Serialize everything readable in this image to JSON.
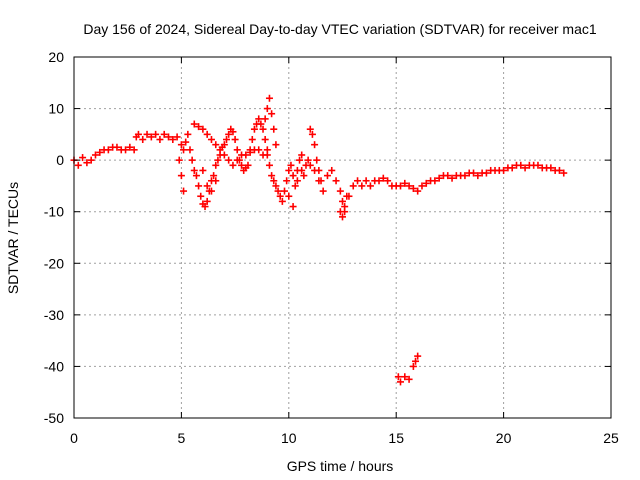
{
  "chart_data": {
    "type": "scatter",
    "title": "Day 156 of 2024, Sidereal Day-to-day VTEC variation (SDTVAR) for receiver mac1",
    "xlabel": "GPS time / hours",
    "ylabel": "SDTVAR / TECUs",
    "xlim": [
      0,
      25
    ],
    "ylim": [
      -50,
      20
    ],
    "xticks": [
      0,
      5,
      10,
      15,
      20,
      25
    ],
    "yticks": [
      -50,
      -40,
      -30,
      -20,
      -10,
      0,
      10,
      20
    ],
    "grid": true,
    "marker": "+",
    "color": "#ff0000",
    "series": [
      {
        "name": "SDTVAR",
        "x": [
          0.0,
          0.2,
          0.4,
          0.6,
          0.8,
          1.0,
          1.2,
          1.4,
          1.6,
          1.8,
          2.0,
          2.2,
          2.4,
          2.6,
          2.8,
          2.9,
          3.0,
          3.2,
          3.4,
          3.6,
          3.8,
          4.0,
          4.2,
          4.4,
          4.6,
          4.8,
          5.0,
          5.1,
          5.2,
          5.3,
          5.4,
          5.5,
          5.6,
          5.7,
          5.8,
          5.9,
          6.0,
          6.1,
          6.2,
          6.3,
          6.4,
          6.5,
          6.6,
          6.7,
          6.8,
          6.9,
          7.0,
          7.1,
          7.2,
          7.3,
          7.4,
          7.5,
          7.6,
          7.7,
          7.8,
          7.9,
          8.0,
          8.1,
          8.2,
          8.3,
          8.4,
          8.5,
          8.6,
          8.7,
          8.8,
          8.9,
          9.0,
          9.1,
          9.2,
          9.3,
          9.4,
          9.5,
          9.6,
          9.7,
          9.8,
          9.9,
          10.0,
          10.1,
          10.2,
          10.3,
          10.4,
          10.5,
          10.6,
          10.7,
          10.8,
          10.9,
          11.0,
          11.2,
          11.4,
          11.6,
          11.8,
          12.0,
          12.2,
          12.4,
          12.5,
          12.6,
          12.8,
          13.0,
          13.2,
          13.4,
          13.6,
          13.8,
          14.0,
          14.2,
          14.4,
          14.6,
          14.8,
          15.0,
          15.2,
          15.4,
          15.6,
          15.8,
          16.0,
          16.2,
          16.4,
          16.6,
          16.8,
          17.0,
          17.2,
          17.4,
          17.6,
          17.8,
          18.0,
          18.2,
          18.4,
          18.6,
          18.8,
          19.0,
          19.2,
          19.4,
          19.6,
          19.8,
          20.0,
          20.2,
          20.4,
          20.6,
          20.8,
          21.0,
          21.2,
          21.4,
          21.6,
          21.8,
          22.0,
          22.2,
          22.4,
          22.6,
          22.8,
          5.6,
          5.8,
          6.0,
          6.2,
          6.4,
          6.6,
          6.8,
          7.0,
          7.2,
          7.4,
          7.6,
          7.8,
          8.0,
          8.2,
          8.4,
          8.6,
          8.8,
          9.0,
          4.9,
          5.0,
          5.1,
          6.0,
          6.2,
          6.4,
          6.6,
          8.9,
          9.0,
          9.1,
          9.2,
          9.3,
          9.4,
          10.0,
          10.2,
          10.4,
          10.6,
          11.0,
          11.1,
          11.2,
          11.3,
          11.4,
          11.5,
          12.4,
          12.5,
          12.6,
          12.7,
          15.1,
          15.2,
          15.4,
          15.6,
          15.8,
          15.9,
          16.0
        ],
        "y": [
          0.0,
          -1.0,
          0.5,
          -0.5,
          0.0,
          1.0,
          1.5,
          2.0,
          2.0,
          2.5,
          2.5,
          2.0,
          2.0,
          2.5,
          2.0,
          4.5,
          5.0,
          4.0,
          5.0,
          4.5,
          5.0,
          4.0,
          5.0,
          4.5,
          4.0,
          4.5,
          3.0,
          2.0,
          3.5,
          5.0,
          2.0,
          0.0,
          -2.0,
          -3.0,
          -5.0,
          -7.0,
          -8.5,
          -9.0,
          -8.0,
          -6.0,
          -4.0,
          -3.0,
          -1.0,
          0.0,
          1.0,
          2.5,
          3.0,
          4.0,
          5.0,
          6.0,
          5.5,
          4.0,
          2.0,
          0.0,
          -1.0,
          -2.0,
          -1.5,
          -1.0,
          2.0,
          4.0,
          6.0,
          7.0,
          8.0,
          7.0,
          6.0,
          4.0,
          2.0,
          -1.0,
          -3.0,
          -4.0,
          -5.0,
          -6.0,
          -7.0,
          -8.0,
          -6.0,
          -4.0,
          -2.0,
          -1.0,
          -3.0,
          -5.0,
          -2.0,
          0.0,
          -2.0,
          -3.0,
          -1.0,
          0.0,
          -1.0,
          -2.0,
          -4.0,
          -6.0,
          -3.0,
          -2.0,
          -4.0,
          -6.0,
          -8.0,
          -10.0,
          -7.0,
          -5.0,
          -4.0,
          -5.0,
          -4.0,
          -5.0,
          -4.0,
          -4.0,
          -3.5,
          -4.0,
          -5.0,
          -5.0,
          -5.0,
          -4.5,
          -5.0,
          -5.5,
          -6.0,
          -5.0,
          -4.5,
          -4.0,
          -4.0,
          -3.5,
          -3.0,
          -3.0,
          -3.5,
          -3.0,
          -3.0,
          -3.0,
          -2.5,
          -2.5,
          -3.0,
          -2.5,
          -2.5,
          -2.0,
          -2.0,
          -2.0,
          -2.0,
          -1.5,
          -1.5,
          -1.0,
          -1.0,
          -1.5,
          -1.0,
          -1.0,
          -1.0,
          -1.5,
          -1.5,
          -1.5,
          -2.0,
          -2.0,
          -2.5,
          7.0,
          6.5,
          6.0,
          5.0,
          4.0,
          3.0,
          2.0,
          1.0,
          0.0,
          -1.0,
          0.0,
          1.0,
          1.0,
          1.5,
          2.0,
          2.0,
          1.0,
          1.0,
          0.0,
          -3.0,
          -6.0,
          -2.0,
          -5.0,
          -6.0,
          -4.0,
          8.0,
          10.0,
          12.0,
          9.0,
          6.0,
          3.0,
          -7.0,
          -9.0,
          -4.0,
          1.0,
          6.0,
          5.0,
          3.0,
          0.0,
          -2.0,
          -4.0,
          -10.0,
          -11.0,
          -9.0,
          -7.0,
          -42.0,
          -43.0,
          -42.0,
          -42.5,
          -40.0,
          -39.0,
          -38.0
        ]
      }
    ]
  }
}
